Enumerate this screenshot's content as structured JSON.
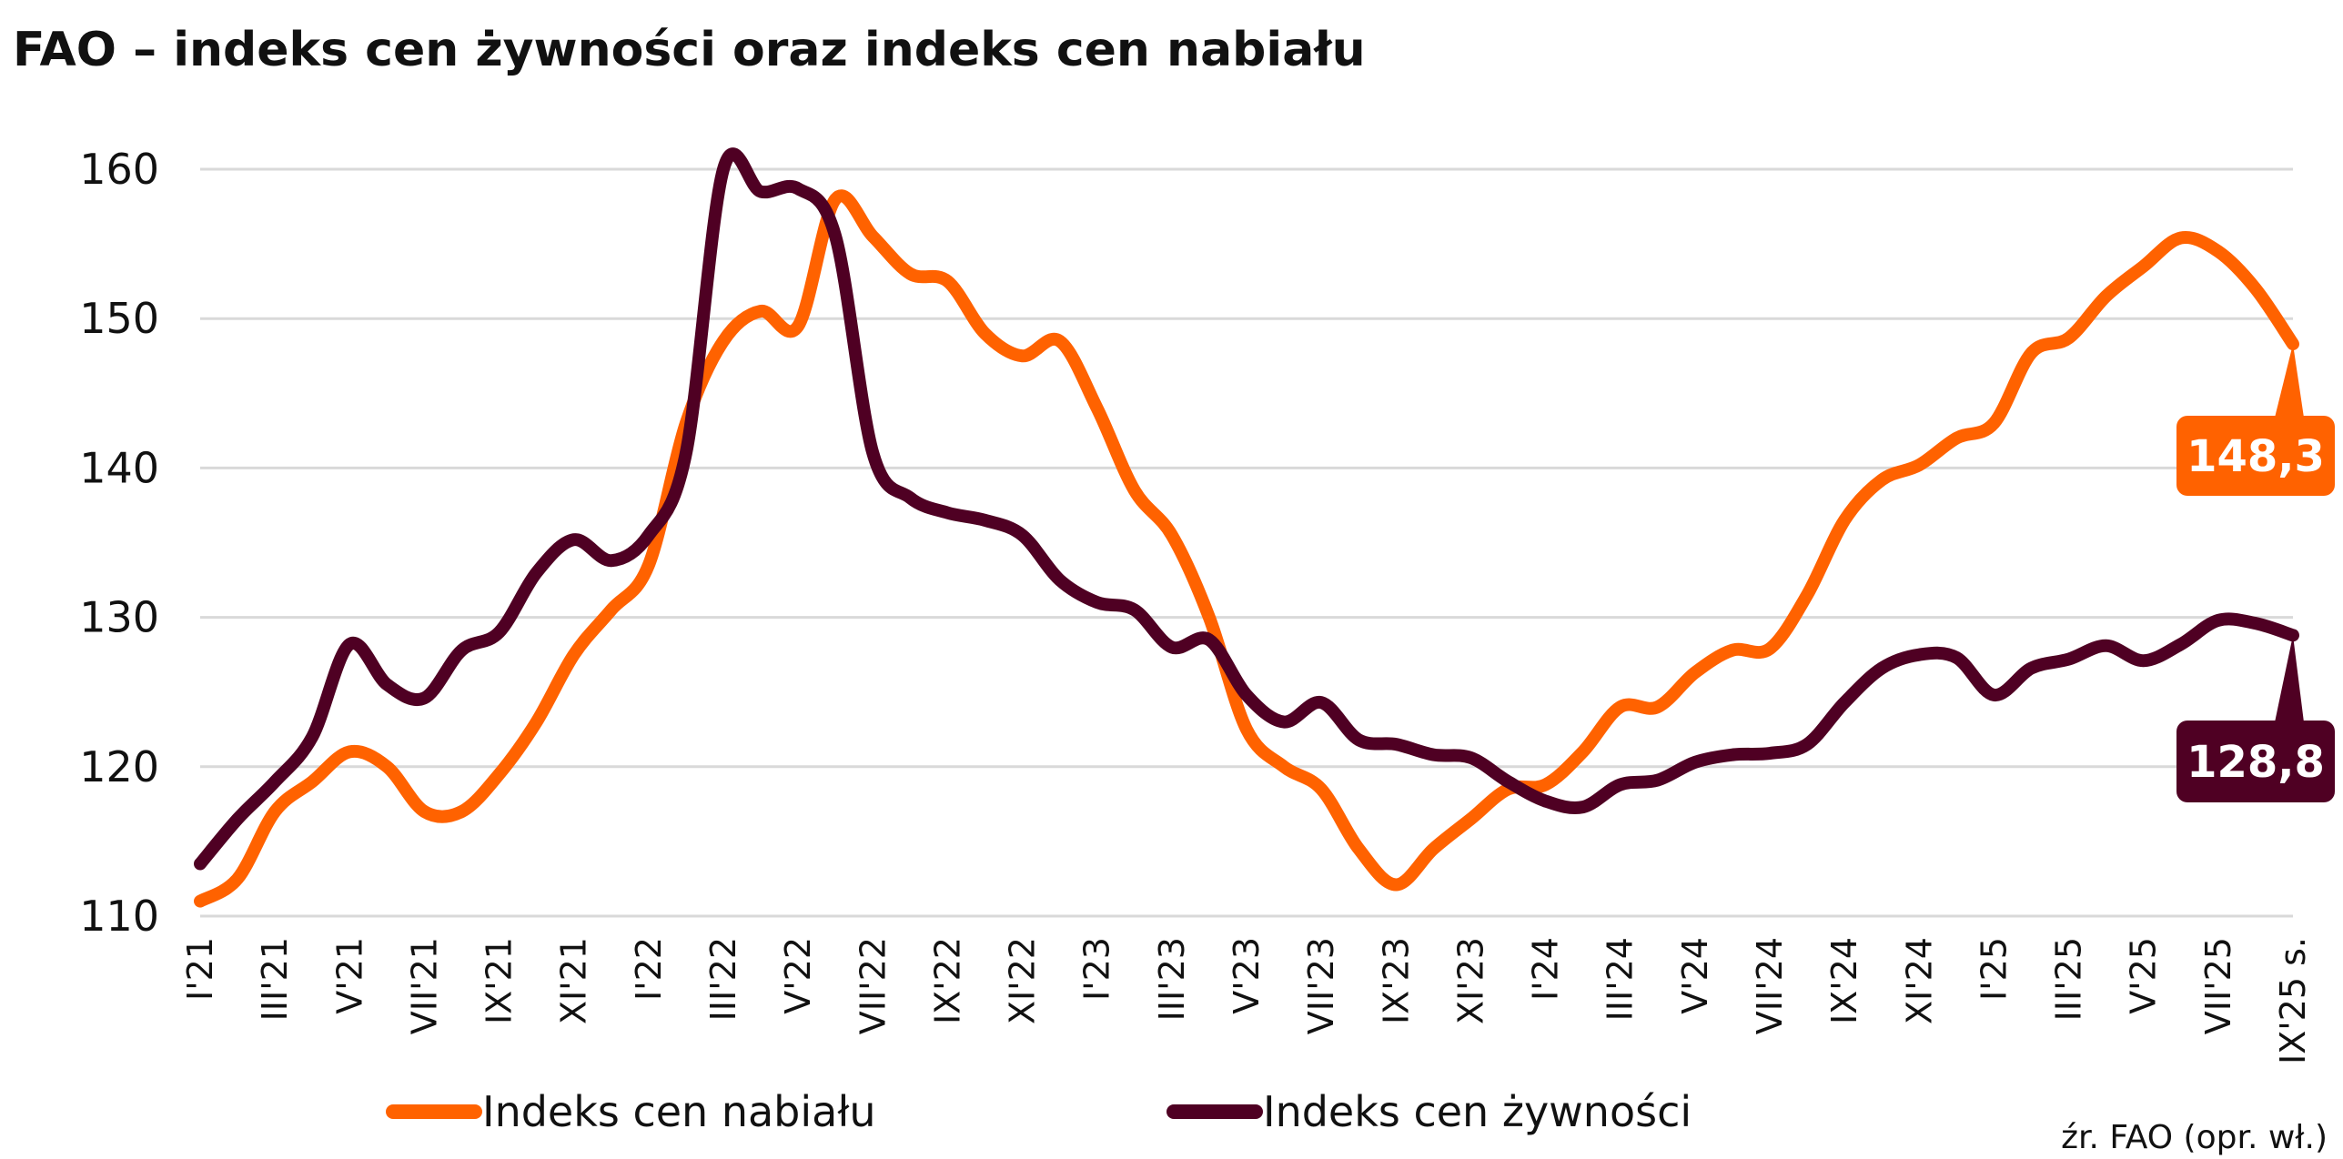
{
  "chart_data": {
    "type": "line",
    "title": "FAO – indeks cen żywności oraz indeks cen nabiału",
    "xlabel": "",
    "ylabel": "",
    "ylim": [
      110,
      160
    ],
    "yticks": [
      110,
      120,
      130,
      140,
      150,
      160
    ],
    "grid": true,
    "legend_position": "bottom",
    "x_tick_labels": [
      "I'21",
      "III'21",
      "V'21",
      "VII'21",
      "IX'21",
      "XI'21",
      "I'22",
      "III'22",
      "V'22",
      "VII'22",
      "IX'22",
      "XI'22",
      "I'23",
      "III'23",
      "V'23",
      "VII'23",
      "IX'23",
      "XI'23",
      "I'24",
      "III'24",
      "V'24",
      "VII'24",
      "IX'24",
      "XI'24",
      "I'25",
      "III'25",
      "V'25",
      "VII'25",
      "IX'25 s."
    ],
    "months_count": 57,
    "series": [
      {
        "name": "Indeks cen nabiału",
        "color": "#ff6200",
        "values": [
          111.0,
          112.5,
          117.0,
          119.0,
          121.0,
          120.0,
          117.0,
          117.0,
          119.5,
          123.0,
          127.5,
          130.5,
          133.5,
          143.0,
          148.5,
          150.5,
          149.5,
          158.0,
          155.5,
          153.0,
          152.5,
          149.0,
          147.5,
          148.5,
          144.0,
          138.5,
          135.5,
          130.0,
          122.5,
          120.0,
          118.5,
          114.5,
          112.1,
          114.5,
          116.5,
          118.5,
          118.8,
          121.0,
          124.0,
          124.0,
          126.3,
          127.8,
          127.9,
          131.5,
          136.5,
          139.2,
          140.2,
          142.0,
          143.0,
          147.7,
          148.7,
          151.5,
          153.5,
          155.4,
          154.5,
          152.0,
          148.3
        ],
        "last_label": "148,3"
      },
      {
        "name": "Indeks cen żywności",
        "color": "#4f0023",
        "values": [
          113.5,
          116.5,
          119.0,
          122.0,
          128.2,
          125.5,
          124.6,
          127.8,
          129.0,
          133.0,
          135.2,
          133.8,
          135.5,
          141.0,
          160.0,
          158.5,
          158.7,
          155.5,
          141.0,
          138.0,
          137.0,
          136.5,
          135.5,
          132.5,
          131.0,
          130.5,
          128.0,
          128.5,
          124.8,
          123.0,
          124.3,
          121.8,
          121.5,
          120.8,
          120.6,
          119.0,
          117.7,
          117.3,
          118.8,
          119.1,
          120.3,
          120.8,
          120.9,
          121.5,
          124.3,
          126.6,
          127.5,
          127.3,
          124.8,
          126.6,
          127.2,
          128.1,
          127.1,
          128.2,
          129.8,
          129.6,
          128.8
        ],
        "last_label": "128,8"
      }
    ],
    "source": "źr. FAO (opr. wł.)"
  }
}
